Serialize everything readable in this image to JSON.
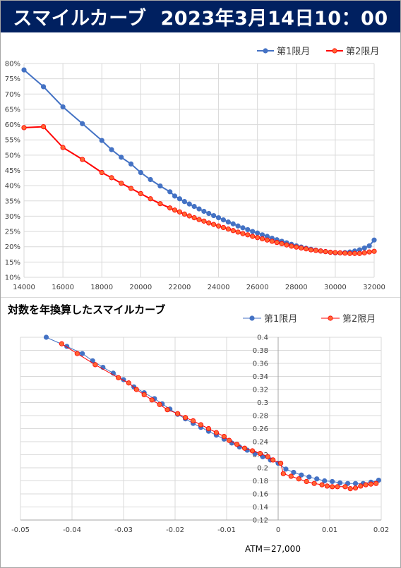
{
  "header": {
    "title": "スマイルカーブ",
    "datetime": "2023年3月14日10：00"
  },
  "colors": {
    "banner_bg": "#002060",
    "series1": "#4472C4",
    "series2": "#FF0000",
    "series2_marker_fill": "#FF6633",
    "grid": "#d9d9d9"
  },
  "chart_data": [
    {
      "type": "line",
      "title": "",
      "legend_position": "top-right",
      "grid": true,
      "xlim": [
        14000,
        32000
      ],
      "ylim": [
        0.1,
        0.8
      ],
      "x_ticks": [
        14000,
        16000,
        18000,
        20000,
        22000,
        24000,
        26000,
        28000,
        30000,
        32000
      ],
      "x_tick_labels": [
        "14000",
        "16000",
        "18000",
        "20000",
        "22000",
        "24000",
        "26000",
        "28000",
        "30000",
        "32000"
      ],
      "y_ticks": [
        0.1,
        0.15,
        0.2,
        0.25,
        0.3,
        0.35,
        0.4,
        0.45,
        0.5,
        0.55,
        0.6,
        0.65,
        0.7,
        0.75,
        0.8
      ],
      "y_tick_labels": [
        "10%",
        "15%",
        "20%",
        "25%",
        "30%",
        "35%",
        "40%",
        "45%",
        "50%",
        "55%",
        "60%",
        "65%",
        "70%",
        "75%",
        "80%"
      ],
      "series": [
        {
          "name": "第1限月",
          "color": "#4472C4",
          "points": [
            [
              14000,
              0.779
            ],
            [
              15000,
              0.724
            ],
            [
              16000,
              0.658
            ],
            [
              17000,
              0.603
            ],
            [
              18000,
              0.548
            ],
            [
              18500,
              0.518
            ],
            [
              19000,
              0.493
            ],
            [
              19500,
              0.471
            ],
            [
              20000,
              0.443
            ],
            [
              20500,
              0.42
            ],
            [
              21000,
              0.399
            ],
            [
              21500,
              0.38
            ],
            [
              21750,
              0.366
            ],
            [
              22000,
              0.357
            ],
            [
              22250,
              0.348
            ],
            [
              22500,
              0.34
            ],
            [
              22750,
              0.332
            ],
            [
              23000,
              0.324
            ],
            [
              23250,
              0.316
            ],
            [
              23500,
              0.309
            ],
            [
              23750,
              0.302
            ],
            [
              24000,
              0.295
            ],
            [
              24250,
              0.288
            ],
            [
              24500,
              0.281
            ],
            [
              24750,
              0.275
            ],
            [
              25000,
              0.268
            ],
            [
              25250,
              0.262
            ],
            [
              25500,
              0.256
            ],
            [
              25750,
              0.25
            ],
            [
              26000,
              0.245
            ],
            [
              26250,
              0.239
            ],
            [
              26500,
              0.234
            ],
            [
              26750,
              0.228
            ],
            [
              27000,
              0.223
            ],
            [
              27250,
              0.218
            ],
            [
              27500,
              0.213
            ],
            [
              27750,
              0.208
            ],
            [
              28000,
              0.203
            ],
            [
              28250,
              0.199
            ],
            [
              28500,
              0.195
            ],
            [
              28750,
              0.192
            ],
            [
              29000,
              0.189
            ],
            [
              29250,
              0.186
            ],
            [
              29500,
              0.184
            ],
            [
              29750,
              0.182
            ],
            [
              30000,
              0.18
            ],
            [
              30250,
              0.18
            ],
            [
              30500,
              0.181
            ],
            [
              30750,
              0.183
            ],
            [
              31000,
              0.186
            ],
            [
              31250,
              0.19
            ],
            [
              31500,
              0.196
            ],
            [
              31750,
              0.203
            ],
            [
              32000,
              0.222
            ]
          ]
        },
        {
          "name": "第2限月",
          "color": "#FF0000",
          "points": [
            [
              14000,
              0.59
            ],
            [
              15000,
              0.593
            ],
            [
              16000,
              0.525
            ],
            [
              17000,
              0.486
            ],
            [
              18000,
              0.443
            ],
            [
              18500,
              0.426
            ],
            [
              19000,
              0.408
            ],
            [
              19500,
              0.391
            ],
            [
              20000,
              0.374
            ],
            [
              20500,
              0.357
            ],
            [
              21000,
              0.341
            ],
            [
              21500,
              0.327
            ],
            [
              21750,
              0.32
            ],
            [
              22000,
              0.314
            ],
            [
              22250,
              0.307
            ],
            [
              22500,
              0.301
            ],
            [
              22750,
              0.295
            ],
            [
              23000,
              0.289
            ],
            [
              23250,
              0.284
            ],
            [
              23500,
              0.278
            ],
            [
              23750,
              0.273
            ],
            [
              24000,
              0.268
            ],
            [
              24250,
              0.263
            ],
            [
              24500,
              0.258
            ],
            [
              24750,
              0.253
            ],
            [
              25000,
              0.248
            ],
            [
              25250,
              0.243
            ],
            [
              25500,
              0.239
            ],
            [
              25750,
              0.234
            ],
            [
              26000,
              0.23
            ],
            [
              26250,
              0.226
            ],
            [
              26500,
              0.222
            ],
            [
              26750,
              0.218
            ],
            [
              27000,
              0.214
            ],
            [
              27250,
              0.21
            ],
            [
              27500,
              0.206
            ],
            [
              27750,
              0.202
            ],
            [
              28000,
              0.199
            ],
            [
              28250,
              0.196
            ],
            [
              28500,
              0.193
            ],
            [
              28750,
              0.19
            ],
            [
              29000,
              0.188
            ],
            [
              29250,
              0.186
            ],
            [
              29500,
              0.184
            ],
            [
              29750,
              0.182
            ],
            [
              30000,
              0.181
            ],
            [
              30250,
              0.18
            ],
            [
              30500,
              0.179
            ],
            [
              30750,
              0.178
            ],
            [
              31000,
              0.178
            ],
            [
              31250,
              0.178
            ],
            [
              31500,
              0.18
            ],
            [
              31750,
              0.183
            ],
            [
              32000,
              0.185
            ]
          ]
        }
      ]
    },
    {
      "type": "line",
      "title": "対数を年換算したスマイルカーブ",
      "legend_position": "top-right",
      "grid": true,
      "xlim": [
        -0.05,
        0.02
      ],
      "ylim": [
        0.12,
        0.4
      ],
      "x_ticks": [
        -0.05,
        -0.04,
        -0.03,
        -0.02,
        -0.01,
        0,
        0.01,
        0.02
      ],
      "x_tick_labels": [
        "-0.05",
        "-0.04",
        "-0.03",
        "-0.02",
        "-0.01",
        "0",
        "0.01",
        "0.02"
      ],
      "y_ticks": [
        0.12,
        0.14,
        0.16,
        0.18,
        0.2,
        0.22,
        0.24,
        0.26,
        0.28,
        0.3,
        0.32,
        0.34,
        0.36,
        0.38,
        0.4
      ],
      "y_tick_labels": [
        "0.12",
        "0.14",
        "0.16",
        "0.18",
        "0.2",
        "0.22",
        "0.24",
        "0.26",
        "0.28",
        "0.3",
        "0.32",
        "0.34",
        "0.36",
        "0.38",
        "0.4"
      ],
      "annotation": "ATM＝27,000",
      "series": [
        {
          "name": "第1限月",
          "color": "#4472C4",
          "points": [
            [
              -0.045,
              0.4
            ],
            [
              -0.041,
              0.386
            ],
            [
              -0.038,
              0.375
            ],
            [
              -0.036,
              0.364
            ],
            [
              -0.034,
              0.354
            ],
            [
              -0.032,
              0.345
            ],
            [
              -0.03,
              0.335
            ],
            [
              -0.028,
              0.324
            ],
            [
              -0.026,
              0.315
            ],
            [
              -0.024,
              0.306
            ],
            [
              -0.0225,
              0.298
            ],
            [
              -0.021,
              0.29
            ],
            [
              -0.0195,
              0.282
            ],
            [
              -0.018,
              0.275
            ],
            [
              -0.0165,
              0.268
            ],
            [
              -0.015,
              0.262
            ],
            [
              -0.0135,
              0.256
            ],
            [
              -0.012,
              0.25
            ],
            [
              -0.0105,
              0.244
            ],
            [
              -0.009,
              0.238
            ],
            [
              -0.0075,
              0.232
            ],
            [
              -0.006,
              0.227
            ],
            [
              -0.0045,
              0.222
            ],
            [
              -0.003,
              0.217
            ],
            [
              -0.0015,
              0.212
            ],
            [
              0,
              0.207
            ],
            [
              0.0015,
              0.198
            ],
            [
              0.003,
              0.193
            ],
            [
              0.0045,
              0.189
            ],
            [
              0.006,
              0.186
            ],
            [
              0.0075,
              0.183
            ],
            [
              0.009,
              0.18
            ],
            [
              0.0105,
              0.179
            ],
            [
              0.012,
              0.177
            ],
            [
              0.0135,
              0.176
            ],
            [
              0.015,
              0.176
            ],
            [
              0.0165,
              0.176
            ],
            [
              0.018,
              0.178
            ],
            [
              0.0195,
              0.181
            ]
          ]
        },
        {
          "name": "第2限月",
          "color": "#FF0000",
          "points": [
            [
              -0.042,
              0.39
            ],
            [
              -0.039,
              0.375
            ],
            [
              -0.0355,
              0.358
            ],
            [
              -0.031,
              0.338
            ],
            [
              -0.029,
              0.33
            ],
            [
              -0.0275,
              0.32
            ],
            [
              -0.026,
              0.312
            ],
            [
              -0.0245,
              0.304
            ],
            [
              -0.023,
              0.297
            ],
            [
              -0.0215,
              0.289
            ],
            [
              -0.0195,
              0.283
            ],
            [
              -0.018,
              0.277
            ],
            [
              -0.0165,
              0.272
            ],
            [
              -0.015,
              0.266
            ],
            [
              -0.0135,
              0.26
            ],
            [
              -0.012,
              0.254
            ],
            [
              -0.0105,
              0.248
            ],
            [
              -0.0095,
              0.242
            ],
            [
              -0.008,
              0.236
            ],
            [
              -0.0065,
              0.23
            ],
            [
              -0.005,
              0.226
            ],
            [
              -0.0035,
              0.222
            ],
            [
              -0.002,
              0.217
            ],
            [
              -0.001,
              0.212
            ],
            [
              0.0005,
              0.207
            ],
            [
              0.001,
              0.191
            ],
            [
              0.0025,
              0.187
            ],
            [
              0.004,
              0.183
            ],
            [
              0.0055,
              0.179
            ],
            [
              0.007,
              0.176
            ],
            [
              0.0085,
              0.174
            ],
            [
              0.0095,
              0.172
            ],
            [
              0.0105,
              0.171
            ],
            [
              0.0115,
              0.171
            ],
            [
              0.013,
              0.171
            ],
            [
              0.014,
              0.168
            ],
            [
              0.015,
              0.169
            ],
            [
              0.016,
              0.172
            ],
            [
              0.017,
              0.174
            ],
            [
              0.018,
              0.175
            ],
            [
              0.019,
              0.176
            ]
          ]
        }
      ]
    }
  ]
}
